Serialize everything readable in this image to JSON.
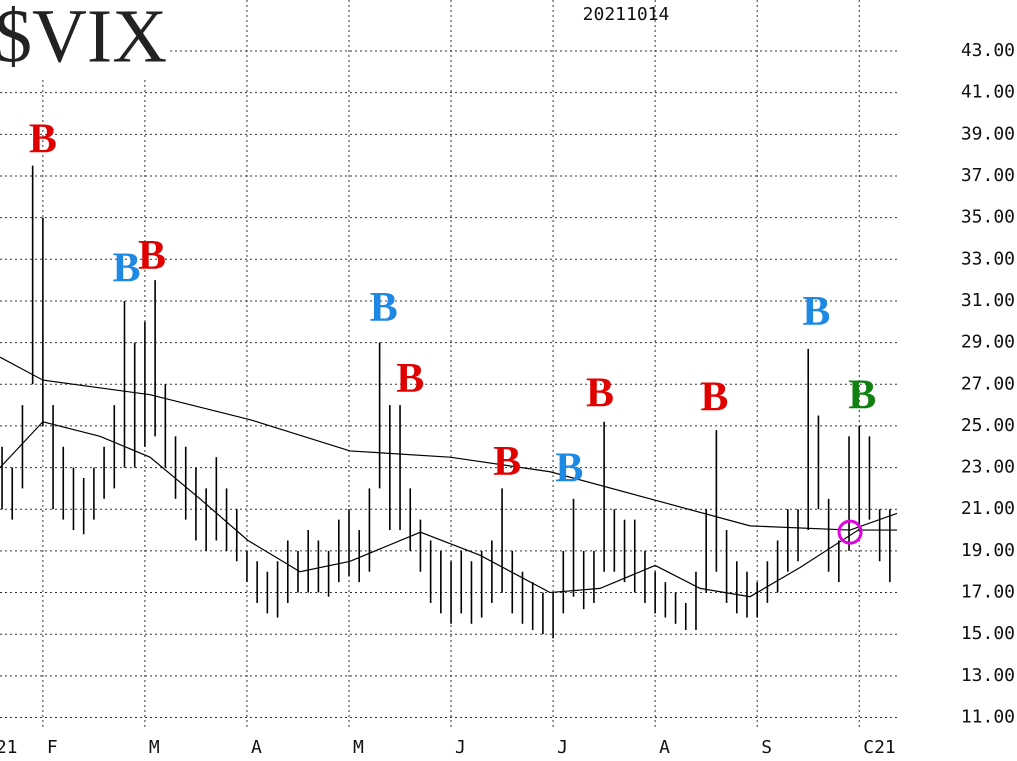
{
  "chart_data": {
    "type": "hilo",
    "title": "$VIX",
    "subtitle": "20211014",
    "xlim": [
      0.58,
      9.37
    ],
    "ylim": [
      10.4,
      45.45
    ],
    "xticks": [
      {
        "value": 0.5,
        "label": "21"
      },
      {
        "value": 1,
        "label": "F"
      },
      {
        "value": 2,
        "label": "M"
      },
      {
        "value": 3,
        "label": "A"
      },
      {
        "value": 4,
        "label": "M"
      },
      {
        "value": 5,
        "label": "J"
      },
      {
        "value": 6,
        "label": "J"
      },
      {
        "value": 7,
        "label": "A"
      },
      {
        "value": 8,
        "label": "S"
      },
      {
        "value": 9,
        "label": "C21"
      }
    ],
    "yticks": [
      {
        "value": 11,
        "label": "11.00"
      },
      {
        "value": 13,
        "label": "13.00"
      },
      {
        "value": 15,
        "label": "15.00"
      },
      {
        "value": 17,
        "label": "17.00"
      },
      {
        "value": 19,
        "label": "19.00"
      },
      {
        "value": 21,
        "label": "21.00"
      },
      {
        "value": 23,
        "label": "23.00"
      },
      {
        "value": 25,
        "label": "25.00"
      },
      {
        "value": 27,
        "label": "27.00"
      },
      {
        "value": 29,
        "label": "29.00"
      },
      {
        "value": 31,
        "label": "31.00"
      },
      {
        "value": 33,
        "label": "33.00"
      },
      {
        "value": 35,
        "label": "35.00"
      },
      {
        "value": 37,
        "label": "37.00"
      },
      {
        "value": 39,
        "label": "39.00"
      },
      {
        "value": 41,
        "label": "41.00"
      },
      {
        "value": 43,
        "label": "43.00"
      }
    ],
    "grid": true,
    "color": "#000000",
    "x": [
      0.6,
      0.7,
      0.8,
      0.9,
      1.0,
      1.1,
      1.2,
      1.3,
      1.4,
      1.5,
      1.6,
      1.7,
      1.8,
      1.9,
      2.0,
      2.1,
      2.2,
      2.3,
      2.4,
      2.5,
      2.6,
      2.7,
      2.8,
      2.9,
      3.0,
      3.1,
      3.2,
      3.3,
      3.4,
      3.5,
      3.6,
      3.7,
      3.8,
      3.9,
      4.0,
      4.1,
      4.2,
      4.3,
      4.4,
      4.5,
      4.6,
      4.7,
      4.8,
      4.9,
      5.0,
      5.1,
      5.2,
      5.3,
      5.4,
      5.5,
      5.6,
      5.7,
      5.8,
      5.9,
      6.0,
      6.1,
      6.2,
      6.3,
      6.4,
      6.5,
      6.6,
      6.7,
      6.8,
      6.9,
      7.0,
      7.1,
      7.2,
      7.3,
      7.4,
      7.5,
      7.6,
      7.7,
      7.8,
      7.9,
      8.0,
      8.1,
      8.2,
      8.3,
      8.4,
      8.5,
      8.6,
      8.7,
      8.8,
      8.9,
      9.0,
      9.1,
      9.2,
      9.3
    ],
    "highs": [
      24,
      23,
      26,
      37.5,
      35,
      26,
      24,
      23,
      22.5,
      23,
      24,
      26,
      31,
      29,
      30,
      32,
      27,
      24.5,
      24,
      23,
      22,
      23.5,
      22,
      21,
      19,
      18.5,
      18,
      18.5,
      19.5,
      19,
      20,
      19.5,
      19,
      20.5,
      21,
      20,
      22,
      29,
      26,
      26,
      22,
      20.5,
      19.5,
      19,
      18.5,
      19,
      18.5,
      19,
      19.5,
      22,
      19,
      18,
      17.5,
      17,
      17,
      19,
      21.5,
      19,
      19,
      25.2,
      21,
      20.5,
      20.5,
      19,
      18,
      17.5,
      17,
      16.5,
      18,
      21,
      24.8,
      20,
      18.5,
      18,
      17.5,
      18.5,
      19.5,
      21,
      21,
      28.7,
      25.5,
      21.5,
      19.5,
      24.5,
      25,
      24.5,
      21,
      21
    ],
    "lows": [
      21,
      20.5,
      22,
      27,
      25,
      21,
      20.5,
      20,
      19.8,
      20.5,
      21.5,
      22,
      23,
      23,
      24,
      24.5,
      23,
      21.5,
      20.5,
      19.5,
      19,
      19.5,
      19,
      18.5,
      17.5,
      16.5,
      16,
      15.8,
      16.5,
      17,
      17,
      17,
      16.8,
      17.5,
      17.8,
      17.5,
      18,
      22,
      20,
      20,
      19,
      18,
      16.5,
      16,
      15.5,
      16,
      15.5,
      15.8,
      16.5,
      17,
      16,
      15.5,
      15.2,
      15,
      14.8,
      16,
      16.8,
      16.2,
      16.5,
      18,
      18,
      17.5,
      17,
      16.5,
      16,
      15.8,
      15.5,
      15.2,
      15.2,
      17,
      18,
      16.5,
      16,
      15.8,
      15.8,
      16.5,
      17,
      18,
      18.5,
      20,
      21,
      18,
      17.5,
      19,
      20,
      20.5,
      18.5,
      17.5
    ],
    "moving_averages": [
      {
        "color": "#000000",
        "x": [
          0.58,
          1.0,
          2.05,
          3.03,
          4.01,
          4.99,
          5.97,
          6.95,
          7.93,
          8.91,
          9.37
        ],
        "values": [
          28.3,
          27.2,
          26.5,
          25.3,
          23.8,
          23.5,
          22.8,
          21.5,
          20.2,
          20.0,
          20.8
        ]
      },
      {
        "color": "#000000",
        "x": [
          0.58,
          1.0,
          1.56,
          2.05,
          2.54,
          3.01,
          3.52,
          4.01,
          4.7,
          5.28,
          5.97,
          6.46,
          7.0,
          7.44,
          7.93,
          8.42,
          8.99,
          9.37
        ],
        "values": [
          23,
          25.2,
          24.5,
          23.5,
          21.5,
          19.5,
          18,
          18.5,
          19.9,
          18.8,
          17,
          17.2,
          18.3,
          17.2,
          16.8,
          18.2,
          20.0,
          20
        ]
      }
    ],
    "annotations": [
      {
        "text": "B",
        "color": "#e00000",
        "x": 1.0,
        "y": 38.6
      },
      {
        "text": "B",
        "color": "#1e88e5",
        "x": 1.82,
        "y": 32.4
      },
      {
        "text": "B",
        "color": "#e00000",
        "x": 2.07,
        "y": 33.0
      },
      {
        "text": "B",
        "color": "#1e88e5",
        "x": 4.34,
        "y": 30.5
      },
      {
        "text": "B",
        "color": "#e00000",
        "x": 4.6,
        "y": 27.1
      },
      {
        "text": "B",
        "color": "#e00000",
        "x": 5.55,
        "y": 23.1
      },
      {
        "text": "B",
        "color": "#1e88e5",
        "x": 6.16,
        "y": 22.8
      },
      {
        "text": "B",
        "color": "#e00000",
        "x": 6.46,
        "y": 26.4
      },
      {
        "text": "B",
        "color": "#e00000",
        "x": 7.58,
        "y": 26.2
      },
      {
        "text": "B",
        "color": "#1e88e5",
        "x": 8.58,
        "y": 30.3
      },
      {
        "text": "B",
        "color": "#108010",
        "x": 9.03,
        "y": 26.3
      }
    ],
    "marker": {
      "x": 8.91,
      "y": 19.9,
      "color": "#e000e0"
    }
  }
}
